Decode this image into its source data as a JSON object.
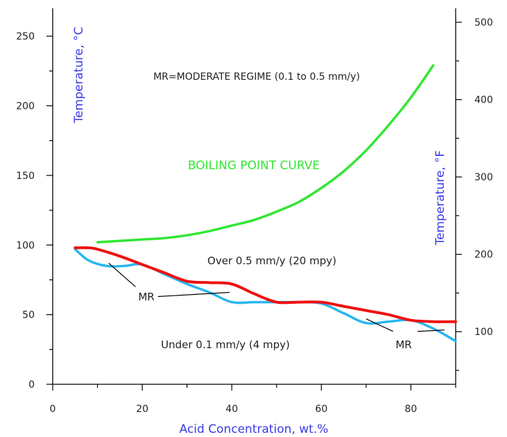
{
  "chart_data": {
    "type": "line",
    "xlabel": "Acid Concentration, wt.%",
    "ylabel_left": "Temperature, °C",
    "ylabel_right": "Temperature, °F",
    "xlim": [
      0,
      90
    ],
    "ylim": [
      0,
      270
    ],
    "ylim_right_F": [
      32,
      518
    ],
    "x_ticks": [
      0,
      20,
      40,
      60,
      80
    ],
    "y_ticks": [
      0,
      50,
      100,
      150,
      200,
      250
    ],
    "y_right_ticks": [
      100,
      200,
      300,
      400,
      500
    ],
    "grid": false,
    "series": [
      {
        "name": "BOILING POINT CURVE",
        "color": "#33e633",
        "x": [
          10,
          15,
          20,
          25,
          30,
          35,
          40,
          45,
          50,
          55,
          60,
          65,
          70,
          75,
          80,
          85
        ],
        "y": [
          102,
          103,
          104,
          105,
          107,
          110,
          114,
          118,
          124,
          131,
          141,
          153,
          168,
          186,
          206,
          229
        ]
      },
      {
        "name": "",
        "color": "#ee1111",
        "x": [
          5,
          8,
          10,
          15,
          20,
          25,
          30,
          35,
          40,
          45,
          50,
          55,
          60,
          65,
          70,
          75,
          80,
          85,
          90
        ],
        "y": [
          98,
          98,
          97,
          92,
          86,
          80,
          74,
          73,
          72,
          65,
          59,
          59,
          59,
          56,
          53,
          50,
          46,
          45,
          45
        ]
      },
      {
        "name": "",
        "color": "#29b6ee",
        "x": [
          5,
          8,
          12,
          16,
          20,
          25,
          30,
          35,
          40,
          45,
          50,
          55,
          60,
          65,
          70,
          75,
          80,
          85,
          90
        ],
        "y": [
          97,
          89,
          85,
          85,
          86,
          79,
          72,
          66,
          59,
          59,
          59,
          59,
          58,
          51,
          44,
          45,
          46,
          40,
          31
        ]
      }
    ],
    "annotations": {
      "regime_note": "MR=MODERATE REGIME (0.1 to 0.5 mm/y)",
      "boiling_label": "BOILING POINT CURVE",
      "over_label": "Over 0.5 mm/y (20 mpy)",
      "under_label": "Under 0.1 mm/y (4 mpy)",
      "mr_label_1": "MR",
      "mr_label_2": "MR"
    }
  }
}
